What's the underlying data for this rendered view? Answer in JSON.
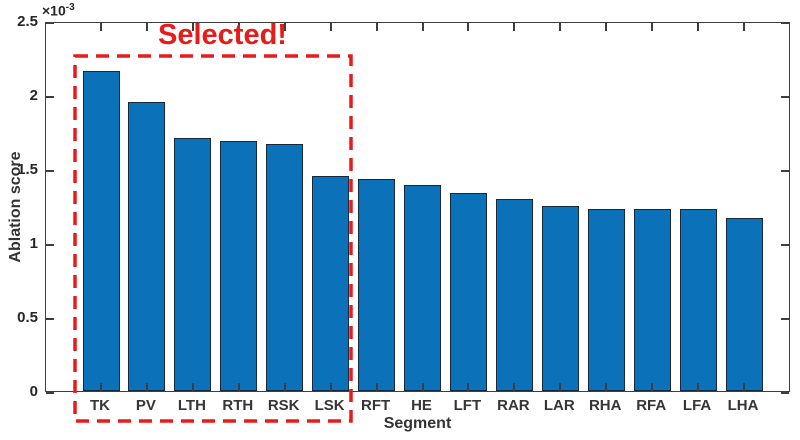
{
  "chart_data": {
    "type": "bar",
    "title": "",
    "categories": [
      "TK",
      "PV",
      "LTH",
      "RTH",
      "RSK",
      "LSK",
      "RFT",
      "HE",
      "LFT",
      "RAR",
      "LAR",
      "RHA",
      "RFA",
      "LFA",
      "LHA"
    ],
    "values": [
      2.16,
      1.95,
      1.71,
      1.69,
      1.67,
      1.45,
      1.43,
      1.39,
      1.34,
      1.3,
      1.25,
      1.23,
      1.23,
      1.23,
      1.17
    ],
    "xlabel": "Segment",
    "ylabel": "Ablation score",
    "ylim": [
      0,
      2.5
    ],
    "yticks": [
      0,
      0.5,
      1,
      1.5,
      2,
      2.5
    ],
    "ytick_labels": [
      "0",
      "0.5",
      "1",
      "1.5",
      "2",
      "2.5"
    ],
    "y_multiplier_base": "×10",
    "y_multiplier_exp": "-3",
    "grid": false,
    "legend": null,
    "bar_color": "#0b72b9",
    "bar_edge_color": "#16293f",
    "annotation": {
      "label": "Selected!",
      "color": "#e81b1b",
      "selected_categories": [
        "TK",
        "PV",
        "LTH",
        "RTH",
        "RSK",
        "LSK"
      ]
    }
  }
}
